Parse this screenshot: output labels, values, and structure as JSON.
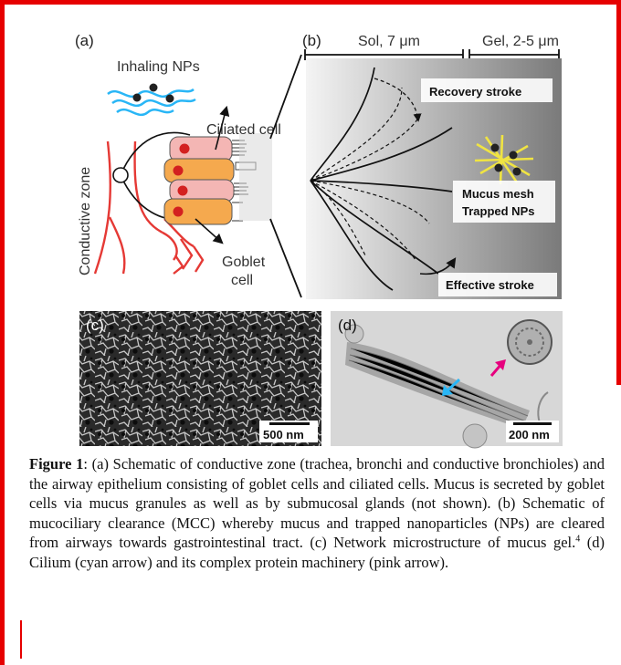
{
  "panel_a": {
    "label": "(a)",
    "inhaling": "Inhaling NPs",
    "ciliated": "Ciliated cell",
    "goblet_1": "Goblet",
    "goblet_2": "cell",
    "zone": "Conductive zone"
  },
  "panel_b": {
    "label": "(b)",
    "sol": "Sol, 7 μm",
    "gel": "Gel, 2-5 μm",
    "recovery": "Recovery stroke",
    "mesh_1": "Mucus mesh",
    "mesh_2": "Trapped NPs",
    "effective": "Effective stroke"
  },
  "panel_c": {
    "label": "(c)",
    "scale": "500 nm"
  },
  "panel_d": {
    "label": "(d)",
    "scale": "200 nm"
  },
  "colors": {
    "frame": "#e60000",
    "airway": "#e53935",
    "ciliated_cell": "#f4b6b4",
    "goblet_cell": "#f5a94e",
    "nucleus": "#d32020",
    "np_tail": "#29b6f6",
    "mesh": "#f0e442",
    "cyan_arrow": "#29b6f6",
    "pink_arrow": "#e6007e"
  },
  "caption": {
    "label": "Figure 1",
    "text": ": (a) Schematic of conductive zone (trachea, bronchi and conductive bronchioles) and the airway epithelium consisting of goblet cells and ciliated cells. Mucus is secreted by goblet cells via mucus granules as well as by submucosal glands (not shown). (b) Schematic of mucociliary clearance (MCC) whereby mucus and trapped nanoparticles (NPs) are cleared from airways towards gastrointestinal tract. (c) Network microstructure of mucus gel.",
    "ref": "4",
    "text_after": " (d) Cilium (cyan arrow) and its complex protein machinery (pink arrow)."
  }
}
